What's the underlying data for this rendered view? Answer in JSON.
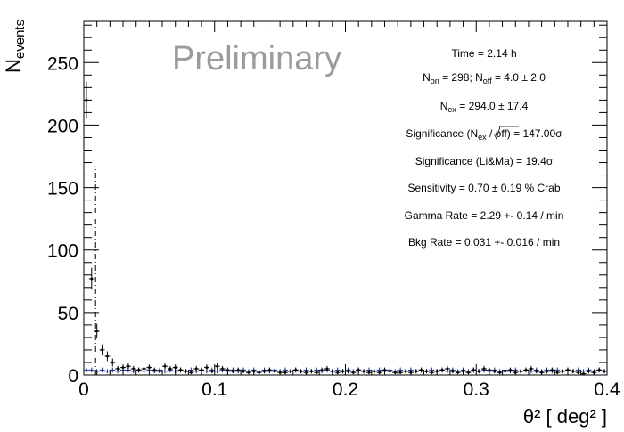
{
  "chart_data": {
    "type": "histogram",
    "watermark": "Preliminary",
    "ylabel_main": "N",
    "ylabel_sub": "events",
    "xlabel": "θ² [ deg² ]",
    "xlim": [
      0,
      0.4
    ],
    "ylim": [
      0,
      283
    ],
    "x_ticks": [
      0,
      0.1,
      0.2,
      0.3,
      0.4
    ],
    "x_tick_labels": [
      "0",
      "0.1",
      "0.2",
      "0.3",
      "0.4"
    ],
    "y_ticks": [
      0,
      50,
      100,
      150,
      200,
      250
    ],
    "y_tick_labels": [
      "0",
      "50",
      "100",
      "150",
      "200",
      "250"
    ],
    "cut_line_x": 0.009,
    "cut_line_top": 167,
    "on_series": {
      "bin_width": 0.004,
      "values": [
        220,
        77,
        35,
        20,
        15,
        10,
        5,
        6,
        7,
        5,
        4,
        5,
        6,
        4,
        3,
        7,
        5,
        6,
        4,
        3,
        2,
        5,
        4,
        6,
        3,
        7,
        5,
        4,
        3,
        4,
        3,
        2,
        3,
        2,
        3,
        4,
        3,
        2,
        2,
        3,
        4,
        3,
        2,
        3,
        2,
        4,
        5,
        3,
        2,
        3,
        3,
        2,
        4,
        3,
        2,
        3,
        2,
        4,
        3,
        2,
        2,
        3,
        2,
        3,
        4,
        3,
        2,
        3,
        4,
        5,
        3,
        2,
        3,
        2,
        4,
        3,
        5,
        4,
        3,
        2,
        3,
        4,
        2,
        3,
        4,
        5,
        3,
        2,
        3,
        4,
        2,
        3,
        4,
        3,
        2,
        1,
        3,
        2,
        4,
        3
      ]
    },
    "off_series": {
      "values": [
        4,
        4,
        3,
        4,
        3,
        4,
        3,
        4,
        4,
        3,
        4,
        3,
        4,
        3,
        4,
        3,
        4,
        3,
        4,
        3,
        4,
        3,
        4,
        3,
        4,
        3,
        4,
        3,
        4,
        3,
        4,
        3,
        4,
        3,
        4,
        3,
        4,
        3,
        4,
        3,
        4,
        3,
        4,
        3,
        4,
        3,
        4,
        3,
        4,
        3,
        4,
        3,
        4,
        3,
        4,
        3,
        4,
        3,
        4,
        3,
        4,
        3,
        4,
        3,
        4,
        3,
        4,
        3,
        4,
        3,
        4,
        3,
        4,
        3,
        4,
        3,
        4,
        3,
        4,
        3,
        4,
        3,
        4,
        3,
        4,
        3,
        4,
        3,
        4,
        3,
        4,
        3,
        4,
        3,
        4,
        3,
        4,
        3,
        4,
        3
      ]
    },
    "colors": {
      "on": "#000000",
      "off": "#1a2c8c",
      "frame": "#000000",
      "watermark": "#9b9b9b"
    }
  },
  "stats": {
    "time": "Time = 2.14 h",
    "non_label": "N",
    "non_sub": "on",
    "non_value": " = 298; N",
    "noff_sub": "off",
    "noff_value": " =  4.0 ±  2.0",
    "nex_label": "N",
    "nex_sub": "ex",
    "nex_value": " = 294.0 ± 17.4",
    "sig1_a": "Significance (N",
    "sig1_sub": "ex",
    "sig1_b": " /  ",
    "sig1_rad": "off",
    "sig1_c": ") = 147.00σ",
    "sig2": "Significance (Li&Ma) = 19.4σ",
    "sensitivity": "Sensitivity = 0.70 ± 0.19 % Crab",
    "gamma_rate": "Gamma Rate = 2.29 +- 0.14 / min",
    "bkg_rate": "Bkg Rate = 0.031 +- 0.016 / min"
  }
}
